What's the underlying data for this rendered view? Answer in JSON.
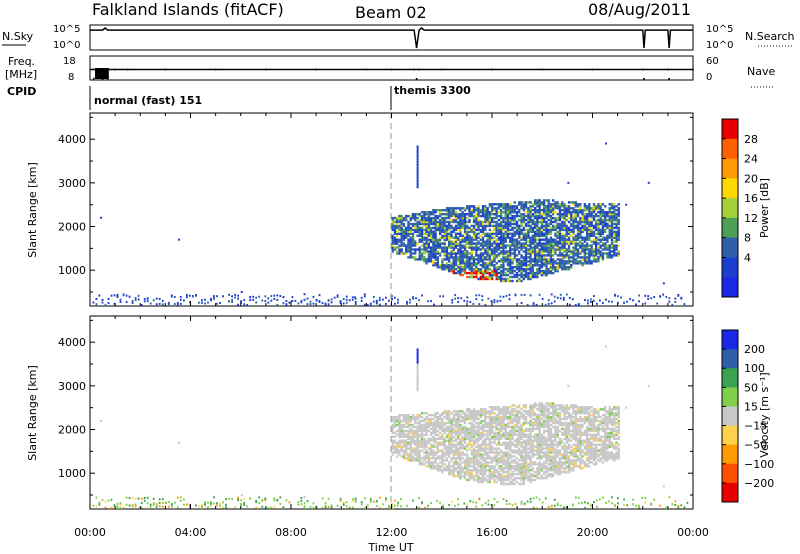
{
  "header": {
    "station": "Falkland Islands (fitACF)",
    "beam": "Beam 02",
    "date": "08/Aug/2011"
  },
  "chart_data": [
    {
      "type": "line",
      "panel": "noise",
      "left_label": "N.Sky",
      "right_label": "N.Search",
      "left_ticks": [
        "10^5",
        "10^0"
      ],
      "right_ticks": [
        "10^5",
        "10^0"
      ],
      "scale": "log",
      "ylim": [
        1,
        100000
      ],
      "series": [
        {
          "values": [
            [
              0.0,
              30000
            ],
            [
              0.5,
              30000
            ],
            [
              0.6,
              100000
            ],
            [
              0.7,
              30000
            ],
            [
              12.9,
              30000
            ],
            [
              13.0,
              1
            ],
            [
              13.1,
              30000
            ],
            [
              13.2,
              100000
            ],
            [
              13.3,
              30000
            ],
            [
              22.0,
              30000
            ],
            [
              22.05,
              1
            ],
            [
              22.1,
              30000
            ],
            [
              23.0,
              30000
            ],
            [
              23.05,
              1
            ],
            [
              23.1,
              30000
            ],
            [
              24.0,
              30000
            ]
          ]
        }
      ]
    },
    {
      "type": "scatter",
      "panel": "frequency",
      "left_label": "Freq.",
      "left_unit": "[MHz]",
      "left_ticks": [
        "18",
        "8"
      ],
      "ylim": [
        8,
        18
      ],
      "right_label": "Nave",
      "right_ticks": [
        "60",
        "0"
      ],
      "baseline": 12.3,
      "series": [
        {
          "values": [
            [
              0.1,
              12.3
            ],
            [
              0.15,
              8.2
            ],
            [
              0.2,
              12.3
            ],
            [
              0.25,
              8.4
            ],
            [
              0.3,
              12.2
            ],
            [
              0.5,
              8.1
            ],
            [
              0.6,
              12.3
            ],
            [
              0.7,
              8.2
            ],
            [
              0.75,
              12.3
            ],
            [
              1.0,
              12.3
            ],
            [
              1.5,
              12.3
            ],
            [
              3.0,
              12.3
            ],
            [
              5.0,
              12.3
            ],
            [
              7.0,
              12.3
            ],
            [
              9.0,
              12.3
            ],
            [
              11.0,
              12.3
            ],
            [
              12.0,
              12.3
            ],
            [
              12.9,
              12.3
            ],
            [
              13.0,
              8.1
            ],
            [
              13.1,
              12.3
            ],
            [
              14.0,
              12.3
            ],
            [
              16.0,
              12.3
            ],
            [
              18.0,
              12.3
            ],
            [
              20.0,
              12.3
            ],
            [
              22.0,
              12.3
            ],
            [
              22.05,
              8.1
            ],
            [
              23.0,
              12.3
            ],
            [
              23.05,
              8.1
            ],
            [
              24.0,
              12.3
            ]
          ]
        }
      ]
    },
    {
      "type": "text",
      "panel": "cpid",
      "label": "CPID",
      "segments": [
        {
          "start": 0.0,
          "end": 12.0,
          "text": "normal (fast) 151"
        },
        {
          "start": 12.0,
          "end": 24.0,
          "text": "themis 3300"
        }
      ]
    },
    {
      "type": "scatter",
      "panel": "power",
      "ylabel": "Slant Range [km]",
      "xlabel": "Time UT",
      "xlim": [
        0,
        24
      ],
      "ylim": [
        180,
        4600
      ],
      "yticks": [
        1000,
        2000,
        3000,
        4000
      ],
      "xticks": [
        "00:00",
        "04:00",
        "08:00",
        "12:00",
        "16:00",
        "20:00",
        "00:00"
      ],
      "colorbar": {
        "label": "Power [dB]",
        "ticks": [
          "28",
          "24",
          "20",
          "16",
          "12",
          "8",
          "4"
        ],
        "colors": [
          "#e60000",
          "#ff6000",
          "#ff9a00",
          "#ffd700",
          "#a5cf3a",
          "#4d9e56",
          "#2e5fa8",
          "#1c3fcf",
          "#1a28e8"
        ]
      },
      "series": [
        {
          "name": "echo_region",
          "values": [
            [
              12.0,
              1400
            ],
            [
              12.0,
              2200
            ],
            [
              14.0,
              2400
            ],
            [
              16.0,
              2500
            ],
            [
              18.0,
              2600
            ],
            [
              20.0,
              2500
            ],
            [
              21.0,
              2500
            ],
            [
              21.0,
              1300
            ],
            [
              19.0,
              1000
            ],
            [
              17.0,
              700
            ],
            [
              15.0,
              800
            ],
            [
              13.0,
              1200
            ]
          ]
        },
        {
          "name": "strong_echo",
          "values": [
            [
              14.5,
              900
            ],
            [
              15.0,
              800
            ],
            [
              15.5,
              750
            ],
            [
              16.0,
              800
            ]
          ]
        },
        {
          "name": "ground_band",
          "values": [
            [
              0.0,
              250
            ],
            [
              12.0,
              300
            ],
            [
              24.0,
              250
            ]
          ]
        }
      ]
    },
    {
      "type": "scatter",
      "panel": "velocity",
      "ylabel": "Slant Range [km]",
      "xlabel": "Time UT",
      "xlim": [
        0,
        24
      ],
      "ylim": [
        180,
        4600
      ],
      "yticks": [
        1000,
        2000,
        3000,
        4000
      ],
      "xticks": [
        "00:00",
        "04:00",
        "08:00",
        "12:00",
        "16:00",
        "20:00",
        "00:00"
      ],
      "colorbar": {
        "label": "Velocity [m s⁻¹]",
        "ticks": [
          "200",
          "100",
          "50",
          "15",
          "−15",
          "−50",
          "−100",
          "−200"
        ],
        "colors": [
          "#1a28e8",
          "#2e5fa8",
          "#3aa352",
          "#7ed04a",
          "#c8c8c8",
          "#ffd24d",
          "#ff9a00",
          "#ff5000",
          "#e60000"
        ]
      },
      "series": [
        {
          "name": "echo_region",
          "values": [
            [
              12.0,
              1400
            ],
            [
              12.0,
              2300
            ],
            [
              14.0,
              2400
            ],
            [
              16.0,
              2500
            ],
            [
              18.0,
              2600
            ],
            [
              20.0,
              2500
            ],
            [
              21.0,
              2500
            ],
            [
              21.0,
              1300
            ],
            [
              19.0,
              1000
            ],
            [
              17.0,
              700
            ],
            [
              15.0,
              800
            ],
            [
              13.0,
              1200
            ]
          ]
        },
        {
          "name": "ground_band",
          "values": [
            [
              0.0,
              250
            ],
            [
              12.0,
              300
            ],
            [
              24.0,
              250
            ]
          ]
        }
      ]
    }
  ]
}
